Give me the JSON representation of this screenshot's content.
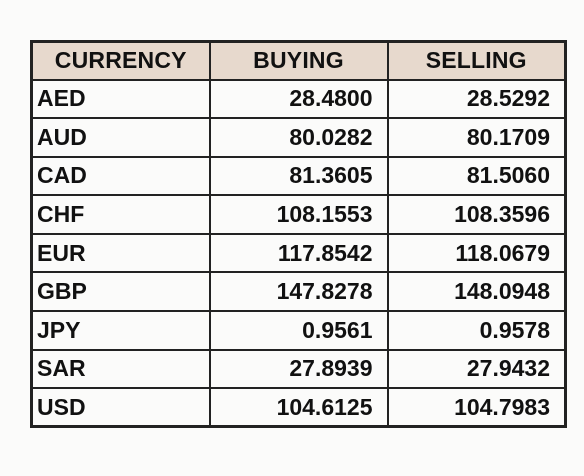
{
  "table": {
    "headers": {
      "currency": "CURRENCY",
      "buying": "BUYING",
      "selling": "SELLING"
    },
    "rows": [
      {
        "currency": "AED",
        "buying": "28.4800",
        "selling": "28.5292"
      },
      {
        "currency": "AUD",
        "buying": "80.0282",
        "selling": "80.1709"
      },
      {
        "currency": "CAD",
        "buying": "81.3605",
        "selling": "81.5060"
      },
      {
        "currency": "CHF",
        "buying": "108.1553",
        "selling": "108.3596"
      },
      {
        "currency": "EUR",
        "buying": "117.8542",
        "selling": "118.0679"
      },
      {
        "currency": "GBP",
        "buying": "147.8278",
        "selling": "148.0948"
      },
      {
        "currency": "JPY",
        "buying": "0.9561",
        "selling": "0.9578"
      },
      {
        "currency": "SAR",
        "buying": "27.8939",
        "selling": "27.9432"
      },
      {
        "currency": "USD",
        "buying": "104.6125",
        "selling": "104.7983"
      }
    ]
  },
  "colors": {
    "header_background": "#e7d9cd",
    "border": "#222222",
    "page_background": "#fbfbfa"
  }
}
